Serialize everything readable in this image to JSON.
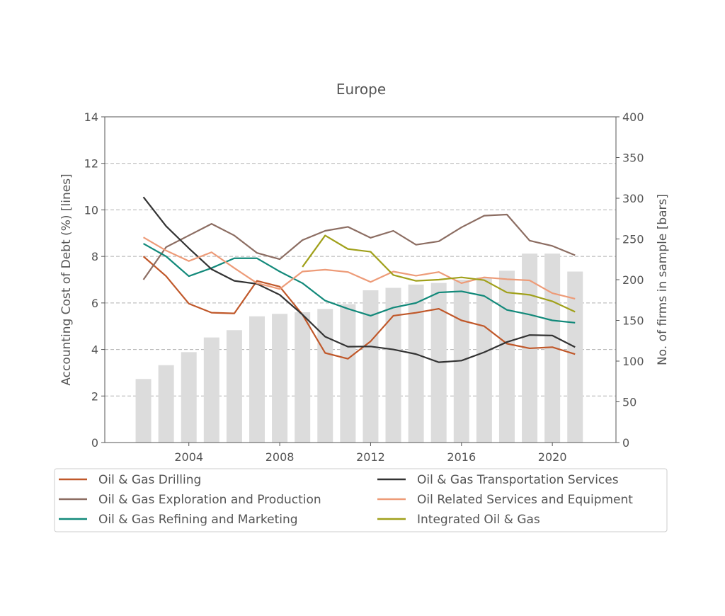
{
  "chart_data": {
    "type": "line",
    "title": "Europe",
    "ylabel": "Accounting Cost of Debt (%)  [lines]",
    "y2label": "No. of firms in sample  [bars]",
    "ylim": [
      0,
      14
    ],
    "y2lim": [
      0,
      400
    ],
    "xlim": [
      2000.3,
      2022.8
    ],
    "xticks": [
      2004,
      2008,
      2012,
      2016,
      2020
    ],
    "xtick_labels": [
      "2004",
      "2008",
      "2012",
      "2016",
      "2020"
    ],
    "yticks": [
      0,
      2,
      4,
      6,
      8,
      10,
      12,
      14
    ],
    "ytick_labels": [
      "0",
      "2",
      "4",
      "6",
      "8",
      "10",
      "12",
      "14"
    ],
    "y2ticks": [
      0,
      50,
      100,
      150,
      200,
      250,
      300,
      350,
      400
    ],
    "y2tick_labels": [
      "0",
      "50",
      "100",
      "150",
      "200",
      "250",
      "300",
      "350",
      "400"
    ],
    "grid": "horizontal dashed",
    "legend_position": "bottom",
    "bars": {
      "x": [
        2002,
        2003,
        2004,
        2005,
        2006,
        2007,
        2008,
        2009,
        2010,
        2011,
        2012,
        2013,
        2014,
        2015,
        2016,
        2017,
        2018,
        2019,
        2020,
        2021
      ],
      "values": [
        78,
        95,
        111,
        129,
        138,
        155,
        158,
        160,
        164,
        170,
        187,
        190,
        194,
        196,
        200,
        203,
        211,
        232,
        232,
        210
      ],
      "color": "#dcdcdc"
    },
    "series": [
      {
        "name": "Oil & Gas Drilling",
        "color": "#c0582a",
        "x": [
          2002,
          2003,
          2004,
          2005,
          2006,
          2007,
          2008,
          2009,
          2010,
          2011,
          2012,
          2013,
          2014,
          2015,
          2016,
          2017,
          2018,
          2019,
          2020,
          2021
        ],
        "values": [
          8.0,
          7.15,
          5.97,
          5.58,
          5.55,
          6.95,
          6.7,
          5.5,
          3.85,
          3.6,
          4.35,
          5.45,
          5.58,
          5.75,
          5.25,
          5.0,
          4.25,
          4.05,
          4.1,
          3.8
        ]
      },
      {
        "name": "Oil & Gas Exploration and Production",
        "color": "#8c6d62",
        "x": [
          2002,
          2003,
          2004,
          2005,
          2006,
          2007,
          2008,
          2009,
          2010,
          2011,
          2012,
          2013,
          2014,
          2015,
          2016,
          2017,
          2018,
          2019,
          2020,
          2021
        ],
        "values": [
          7.0,
          8.4,
          8.9,
          9.4,
          8.9,
          8.15,
          7.88,
          8.7,
          9.1,
          9.27,
          8.8,
          9.1,
          8.5,
          8.65,
          9.25,
          9.75,
          9.8,
          8.68,
          8.45,
          8.05
        ]
      },
      {
        "name": "Oil & Gas Refining and Marketing",
        "color": "#12897a",
        "x": [
          2002,
          2003,
          2004,
          2005,
          2006,
          2007,
          2008,
          2009,
          2010,
          2011,
          2012,
          2013,
          2014,
          2015,
          2016,
          2017,
          2018,
          2019,
          2020,
          2021
        ],
        "values": [
          8.55,
          8.0,
          7.15,
          7.5,
          7.92,
          7.92,
          7.35,
          6.85,
          6.1,
          5.75,
          5.45,
          5.8,
          6.0,
          6.45,
          6.5,
          6.3,
          5.7,
          5.5,
          5.25,
          5.15
        ]
      },
      {
        "name": "Oil & Gas Transportation Services",
        "color": "#333333",
        "x": [
          2002,
          2003,
          2004,
          2005,
          2006,
          2007,
          2008,
          2009,
          2010,
          2011,
          2012,
          2013,
          2014,
          2015,
          2016,
          2017,
          2018,
          2019,
          2020,
          2021
        ],
        "values": [
          10.55,
          9.3,
          8.35,
          7.45,
          6.95,
          6.82,
          6.35,
          5.5,
          4.55,
          4.12,
          4.13,
          4.0,
          3.8,
          3.45,
          3.52,
          3.88,
          4.32,
          4.62,
          4.6,
          4.1
        ]
      },
      {
        "name": "Oil Related Services and Equipment",
        "color": "#ed9b78",
        "x": [
          2002,
          2003,
          2004,
          2005,
          2006,
          2007,
          2008,
          2009,
          2010,
          2011,
          2012,
          2013,
          2014,
          2015,
          2016,
          2017,
          2018,
          2019,
          2020,
          2021
        ],
        "values": [
          8.82,
          8.25,
          7.8,
          8.18,
          7.5,
          6.85,
          6.6,
          7.35,
          7.43,
          7.33,
          6.9,
          7.35,
          7.17,
          7.33,
          6.85,
          7.1,
          7.02,
          6.97,
          6.42,
          6.18
        ]
      },
      {
        "name": "Integrated Oil & Gas",
        "color": "#a0a01a",
        "x": [
          2009,
          2010,
          2011,
          2012,
          2013,
          2014,
          2015,
          2016,
          2017,
          2018,
          2019,
          2020,
          2021
        ],
        "values": [
          7.55,
          8.9,
          8.32,
          8.2,
          7.2,
          6.95,
          7.0,
          7.1,
          6.98,
          6.45,
          6.35,
          6.07,
          5.62
        ]
      }
    ]
  }
}
